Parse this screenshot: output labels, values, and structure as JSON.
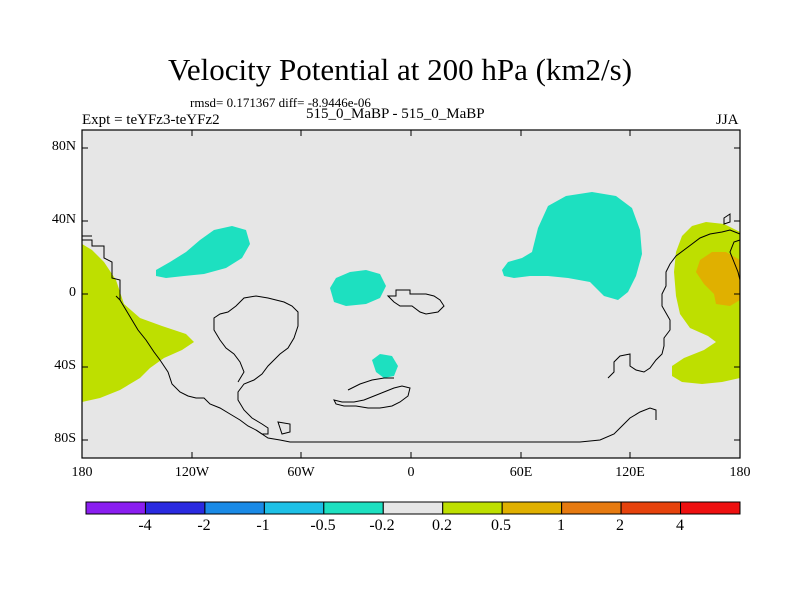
{
  "title": "Velocity Potential at 200 hPa (km2/s)",
  "stats": "rmsd= 0.171367 diff= -8.9446e-06",
  "experiment": "Expt = teYFz3-teYFz2",
  "center_label": "515_0_MaBP - 515_0_MaBP",
  "season": "JJA",
  "map": {
    "projection": "cylindrical equidistant",
    "lat_labels": [
      "80N",
      "40N",
      "0",
      "40S",
      "80S"
    ],
    "lon_labels": [
      "180",
      "120W",
      "60W",
      "0",
      "60E",
      "120E",
      "180"
    ],
    "background_color": "#e6e6e6"
  },
  "colorbar": {
    "labels": [
      "-4",
      "-2",
      "-1",
      "-0.5",
      "-0.2",
      "0.2",
      "0.5",
      "1",
      "2",
      "4"
    ],
    "colors": [
      "#8a1ef0",
      "#2a2ae0",
      "#1a8ae6",
      "#1ec0e6",
      "#1de0c0",
      "#e6e6e6",
      "#bedf00",
      "#e0b000",
      "#e67a10",
      "#e6420c",
      "#ee1010"
    ]
  },
  "contour_regions": [
    {
      "name": "east-pacific-dipole",
      "color": "#bedf00"
    },
    {
      "name": "mexico-cyan",
      "color": "#1de0c0"
    },
    {
      "name": "atlantic-cyan",
      "color": "#1de0c0"
    },
    {
      "name": "south-atlantic-cyan",
      "color": "#1de0c0"
    },
    {
      "name": "asia-cyan",
      "color": "#1de0c0"
    },
    {
      "name": "west-pacific-green",
      "color": "#bedf00"
    },
    {
      "name": "west-pacific-orange",
      "color": "#e0b000"
    }
  ]
}
